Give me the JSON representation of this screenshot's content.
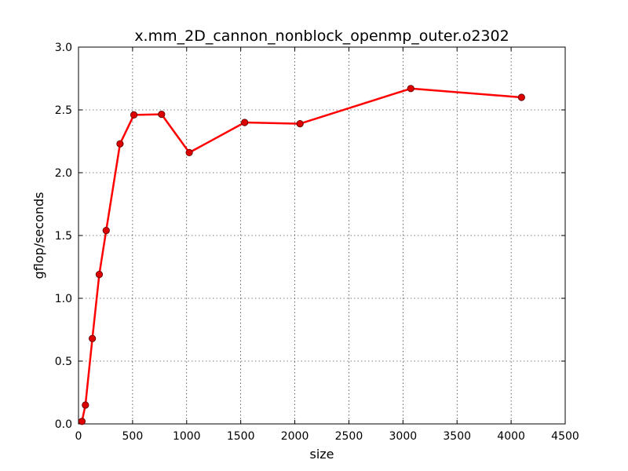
{
  "chart_data": {
    "type": "line",
    "title": "x.mm_2D_cannon_nonblock_openmp_outer.o2302",
    "xlabel": "size",
    "ylabel": "gflop/seconds",
    "xlim": [
      0,
      4500
    ],
    "ylim": [
      0.0,
      3.0
    ],
    "xticks": [
      0,
      500,
      1000,
      1500,
      2000,
      2500,
      3000,
      3500,
      4000,
      4500
    ],
    "yticks": [
      0.0,
      0.5,
      1.0,
      1.5,
      2.0,
      2.5,
      3.0
    ],
    "xtick_labels": [
      "0",
      "500",
      "1000",
      "1500",
      "2000",
      "2500",
      "3000",
      "3500",
      "4000",
      "4500"
    ],
    "ytick_labels": [
      "0.0",
      "0.5",
      "1.0",
      "1.5",
      "2.0",
      "2.5",
      "3.0"
    ],
    "grid": true,
    "colors": {
      "line": "#ff0000",
      "marker_fill": "#dd0000",
      "marker_edge": "#550000"
    },
    "series": [
      {
        "x": [
          32,
          64,
          128,
          192,
          256,
          384,
          512,
          768,
          1024,
          1536,
          2048,
          3072,
          4096
        ],
        "y": [
          0.02,
          0.15,
          0.68,
          1.19,
          1.54,
          2.23,
          2.46,
          2.465,
          2.16,
          2.4,
          2.39,
          2.67,
          2.6
        ]
      }
    ]
  }
}
